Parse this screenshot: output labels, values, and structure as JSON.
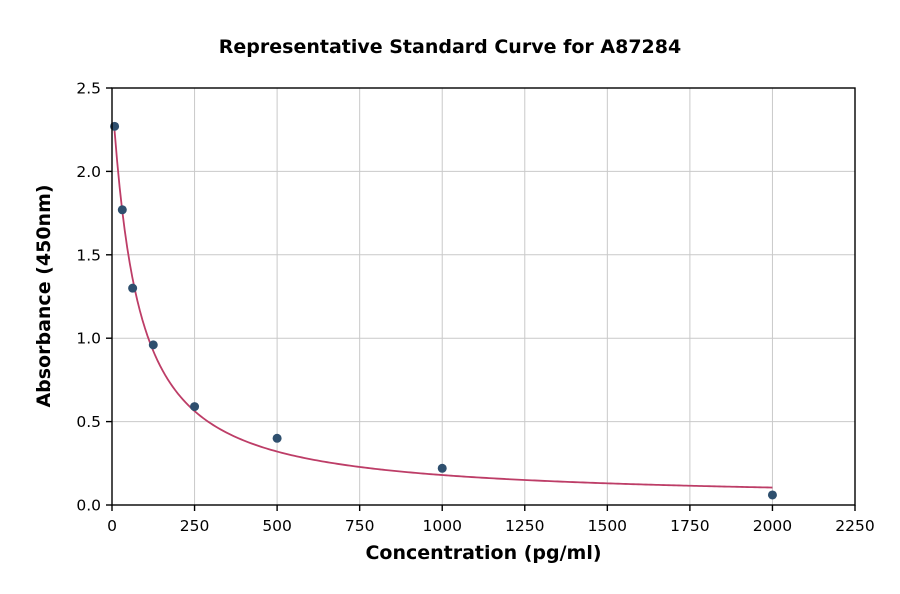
{
  "chart_data": {
    "type": "scatter",
    "title": "Representative Standard Curve for A87284",
    "xlabel": "Concentration (pg/ml)",
    "ylabel": "Absorbance (450nm)",
    "xlim": [
      0,
      2250
    ],
    "ylim": [
      0,
      2.5
    ],
    "x_ticks": [
      0,
      250,
      500,
      750,
      1000,
      1250,
      1500,
      1750,
      2000,
      2250
    ],
    "x_tick_labels": [
      "0",
      "250",
      "500",
      "750",
      "1000",
      "1250",
      "1500",
      "1750",
      "2000",
      "2250"
    ],
    "y_ticks": [
      0,
      0.5,
      1.0,
      1.5,
      2.0,
      2.5
    ],
    "y_tick_labels": [
      "0.0",
      "0.5",
      "1.0",
      "1.5",
      "2.0",
      "2.5"
    ],
    "grid": true,
    "legend": "none",
    "points": {
      "x": [
        7.8,
        31.2,
        62.5,
        125,
        250,
        500,
        1000,
        2000
      ],
      "y": [
        2.27,
        1.77,
        1.3,
        0.96,
        0.59,
        0.4,
        0.22,
        0.06
      ]
    },
    "fit": {
      "model": "4PL",
      "a": 2.45,
      "b": 1.05,
      "c": 75,
      "d": 0.03,
      "x_start": 7.8,
      "x_end": 2000
    },
    "colors": {
      "marker": "#2e4f6e",
      "curve": "#bd3d67",
      "grid": "#c9c9c9",
      "axis": "#000000",
      "background": "#ffffff"
    }
  }
}
